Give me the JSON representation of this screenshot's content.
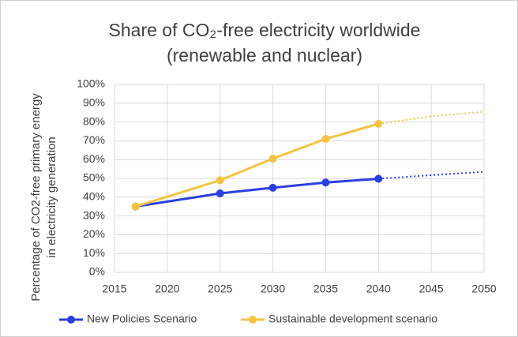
{
  "chart_data": {
    "type": "line",
    "title": "Share of CO₂-free electricity worldwide",
    "subtitle": "(renewable and nuclear)",
    "y_label": [
      "Percentage of CO2-free primary energy",
      "in electricity generation"
    ],
    "x": [
      2017,
      2025,
      2030,
      2035,
      2040
    ],
    "series": [
      {
        "name": "New Policies Scenario",
        "color": "#2b3fe0",
        "values": [
          35,
          42,
          45,
          47.8,
          49.8
        ],
        "projection": {
          "x": [
            2040,
            2045,
            2050
          ],
          "values": [
            49.8,
            51.7,
            53.5
          ]
        }
      },
      {
        "name": "Sustainable development scenario",
        "color": "#f5c342",
        "values": [
          35,
          49,
          60.5,
          71,
          79
        ],
        "projection": {
          "x": [
            2040,
            2045,
            2050
          ],
          "values": [
            79,
            83,
            85.5
          ]
        }
      }
    ],
    "xlim": [
      2015,
      2050
    ],
    "xticks": [
      2015,
      2020,
      2025,
      2030,
      2035,
      2040,
      2045,
      2050
    ],
    "ylim": [
      0,
      100
    ],
    "yticks": [
      {
        "value": 0,
        "label": "0%"
      },
      {
        "value": 10,
        "label": "10%"
      },
      {
        "value": 20,
        "label": "20%"
      },
      {
        "value": 30,
        "label": "30%"
      },
      {
        "value": 40,
        "label": "40%"
      },
      {
        "value": 50,
        "label": "50%"
      },
      {
        "value": 60,
        "label": "60%"
      },
      {
        "value": 70,
        "label": "70%"
      },
      {
        "value": 80,
        "label": "80%"
      },
      {
        "value": 90,
        "label": "90%"
      },
      {
        "value": 100,
        "label": "100%"
      }
    ],
    "grid": true,
    "legend": "bottom"
  }
}
